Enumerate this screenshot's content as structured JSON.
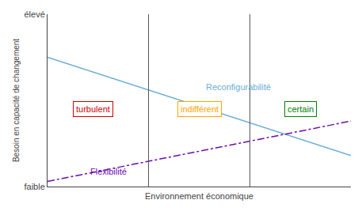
{
  "chart_data": {
    "type": "line",
    "xlabel": "Environnement économique",
    "ylabel": "Besoin en capacité de changement",
    "xlim": [
      0,
      10
    ],
    "ylim": [
      0,
      10
    ],
    "yticks": [
      {
        "value": 0.0,
        "label": "faible"
      },
      {
        "value": 10.0,
        "label": "élevé"
      }
    ],
    "tick_labels": "y",
    "grid": false,
    "series": [
      {
        "color": "#6BAED6",
        "line_style": "solid",
        "x": [
          0,
          10
        ],
        "values": [
          7.5,
          1.8
        ]
      },
      {
        "color": "#6A0DAD",
        "line_style": "dashdot",
        "x": [
          0,
          10
        ],
        "values": [
          0.3,
          3.8
        ]
      }
    ],
    "vlines": {
      "x": [
        3.33,
        6.67
      ],
      "color": "#555555"
    },
    "annotations": [
      {
        "text": "turbulent",
        "x": 1.5,
        "y": 4.5,
        "color": "#CC0000",
        "box": true
      },
      {
        "text": "indifférent",
        "x": 5.0,
        "y": 4.5,
        "color": "#FFA500",
        "box": true
      },
      {
        "text": "certain",
        "x": 8.35,
        "y": 4.5,
        "color": "#008000",
        "box": true
      },
      {
        "text": "Reconfigurabilité",
        "x": 6.3,
        "y": 5.8,
        "color": "#6BAED6",
        "box": false
      },
      {
        "text": "Flexibilité",
        "x": 2.0,
        "y": 0.85,
        "color": "#6A0DAD",
        "box": false
      }
    ]
  }
}
